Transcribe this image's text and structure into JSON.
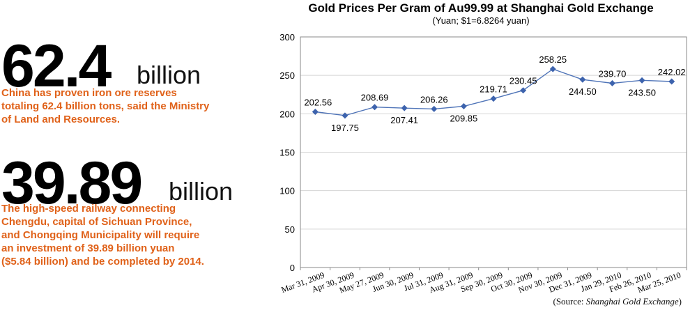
{
  "stats": [
    {
      "value": "62.4",
      "unit": "billion",
      "description_lines": [
        "China has proven iron ore reserves",
        "totaling 62.4 billion tons, said the Ministry",
        "of Land and Resources."
      ]
    },
    {
      "value": "39.89",
      "unit": "billion",
      "description_lines": [
        "The high-speed railway connecting",
        "Chengdu, capital of Sichuan Province,",
        "and Chongqing Municipality will require",
        "an investment of 39.89 billion yuan",
        "($5.84 billion) and be completed by 2014."
      ]
    }
  ],
  "colors": {
    "accent_text": "#e0621a",
    "series": "#4f74b8",
    "marker": "#3d63ad"
  },
  "source": {
    "prefix": "(Source: ",
    "name": "Shanghai Gold Exchange",
    "suffix": ")"
  },
  "chart_data": {
    "type": "line",
    "title": "Gold Prices Per Gram of Au99.99 at Shanghai Gold Exchange",
    "subtitle": "(Yuan; $1=6.8264 yuan)",
    "xlabel": "",
    "ylabel": "",
    "ylim": [
      0,
      300
    ],
    "yticks": [
      0,
      50,
      100,
      150,
      200,
      250,
      300
    ],
    "grid": "horizontal",
    "categories": [
      "Mar 31, 2009",
      "Apr 30, 2009",
      "May 27, 2009",
      "Jun 30, 2009",
      "Jul 31, 2009",
      "Aug 31, 2009",
      "Sep 30, 2009",
      "Oct 30, 2009",
      "Nov 30, 2009",
      "Dec 31, 2009",
      "Jan 29, 2010",
      "Feb 26, 2010",
      "Mar 25, 2010"
    ],
    "series": [
      {
        "values": [
          202.56,
          197.75,
          208.69,
          207.41,
          206.26,
          209.85,
          219.71,
          230.45,
          258.25,
          244.5,
          239.7,
          243.5,
          242.02
        ],
        "labels": [
          "202.56",
          "197.75",
          "208.69",
          "207.41",
          "206.26",
          "209.85",
          "219.71",
          "230.45",
          "258.25",
          "244.50",
          "239.70",
          "243.50",
          "242.02"
        ]
      }
    ]
  }
}
